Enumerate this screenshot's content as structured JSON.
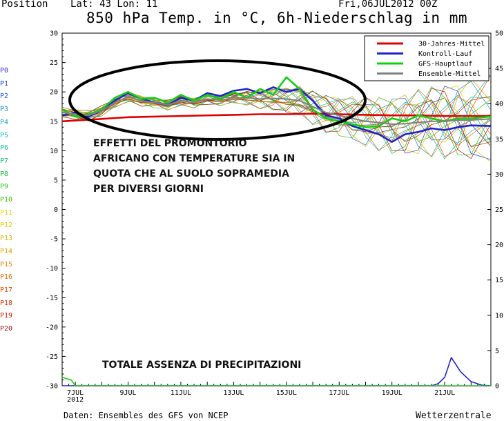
{
  "header": {
    "position_label": "Position",
    "latlon": "Lat: 43 Lon: 11",
    "date": "Fri,06JUL2012  00Z",
    "title": "850 hPa Temp. in °C, 6h-Niederschlag in mm"
  },
  "footer": {
    "source": "Daten: Ensembles des GFS von NCEP",
    "brand": "Wetterzentrale"
  },
  "members": [
    {
      "label": "P0",
      "color": "#3030d0"
    },
    {
      "label": "P1",
      "color": "#1840d8"
    },
    {
      "label": "P2",
      "color": "#2060e0"
    },
    {
      "label": "P3",
      "color": "#1890d0"
    },
    {
      "label": "P4",
      "color": "#10a8c0"
    },
    {
      "label": "P5",
      "color": "#10c0c8"
    },
    {
      "label": "P6",
      "color": "#10b8a0"
    },
    {
      "label": "P7",
      "color": "#10c078"
    },
    {
      "label": "P8",
      "color": "#10c040"
    },
    {
      "label": "P9",
      "color": "#20c020"
    },
    {
      "label": "P10",
      "color": "#40c000"
    },
    {
      "label": "P11",
      "color": "#d8d800"
    },
    {
      "label": "P12",
      "color": "#e0c800"
    },
    {
      "label": "P13",
      "color": "#e0b000"
    },
    {
      "label": "P14",
      "color": "#e0a000"
    },
    {
      "label": "P15",
      "color": "#e08800"
    },
    {
      "label": "P16",
      "color": "#e07000"
    },
    {
      "label": "P17",
      "color": "#e05000"
    },
    {
      "label": "P18",
      "color": "#d83000"
    },
    {
      "label": "P19",
      "color": "#c02000"
    },
    {
      "label": "P20",
      "color": "#a01818"
    }
  ],
  "annotations": {
    "main_lines": [
      "EFFETTI DEL PROMONTORIO",
      "AFRICANO CON TEMPERATURE SIA IN",
      "QUOTA CHE AL SUOLO SOPRAMEDIA",
      "PER DIVERSI GIORNI"
    ],
    "precip_note": "TOTALE ASSENZA DI PRECIPITAZIONI"
  },
  "chart_data": {
    "type": "line",
    "title": "850 hPa Temp. in °C, 6h-Niederschlag in mm",
    "left_axis": {
      "label": "850 hPa Temp. (°C)",
      "min": -30,
      "max": 30,
      "step": 5
    },
    "right_axis": {
      "label": "6h-Niederschlag (mm)",
      "min": 0,
      "max": 50,
      "step": 5
    },
    "x_range_days": [
      6.5,
      22.75
    ],
    "x_ticks": [
      {
        "day": 7,
        "label": "7JUL",
        "sublabel": "2012"
      },
      {
        "day": 9,
        "label": "9JUL"
      },
      {
        "day": 11,
        "label": "11JUL"
      },
      {
        "day": 13,
        "label": "13JUL"
      },
      {
        "day": 15,
        "label": "15JUL"
      },
      {
        "day": 17,
        "label": "17JUL"
      },
      {
        "day": 19,
        "label": "19JUL"
      },
      {
        "day": 21,
        "label": "21JUL"
      }
    ],
    "legend": {
      "position": "top-right",
      "entries": [
        {
          "name": "30-Jahres-Mittel",
          "color": "#e00000"
        },
        {
          "name": "Kontroll-Lauf",
          "color": "#2020d0"
        },
        {
          "name": "GFS-Hauptlauf",
          "color": "#10d010"
        },
        {
          "name": "Ensemble-Mittel",
          "color": "#808080"
        }
      ]
    },
    "series": [
      {
        "name": "30-Jahres-Mittel",
        "axis": "left",
        "color": "#e00000",
        "x": [
          6.5,
          8,
          9,
          10,
          11,
          12,
          13,
          14,
          15,
          16,
          17,
          18,
          19,
          20,
          21,
          22.75
        ],
        "values": [
          15.0,
          15.4,
          15.7,
          15.8,
          15.9,
          16.0,
          16.1,
          16.2,
          16.2,
          16.3,
          16.2,
          16.1,
          16.0,
          16.0,
          15.9,
          15.9
        ]
      },
      {
        "name": "Kontroll-Lauf",
        "axis": "left",
        "color": "#2020d0",
        "x": [
          6.5,
          7,
          7.5,
          8,
          8.5,
          9,
          9.5,
          10,
          10.5,
          11,
          11.5,
          12,
          12.5,
          13,
          13.5,
          14,
          14.5,
          15,
          15.5,
          16,
          16.5,
          17,
          17.5,
          18,
          18.5,
          19,
          19.5,
          20,
          20.5,
          21,
          21.5,
          22,
          22.75
        ],
        "values": [
          16,
          16.5,
          15.8,
          16.8,
          18.5,
          19.8,
          18.8,
          18.2,
          17.8,
          19,
          18.5,
          19.8,
          19.3,
          20.2,
          20.5,
          19.8,
          20.8,
          20,
          20.5,
          18.5,
          16,
          15.5,
          14.2,
          13.5,
          12.8,
          11.5,
          12.8,
          13.2,
          13.8,
          13.5,
          14,
          14.3,
          14.2
        ]
      },
      {
        "name": "GFS-Hauptlauf",
        "axis": "left",
        "color": "#10d010",
        "x": [
          6.5,
          7,
          7.5,
          8,
          8.5,
          9,
          9.5,
          10,
          10.5,
          11,
          11.5,
          12,
          12.5,
          13,
          13.5,
          14,
          14.5,
          15,
          15.5,
          16,
          16.5,
          17,
          17.5,
          18,
          18.5,
          19,
          19.5,
          20,
          20.5,
          21,
          21.5,
          22,
          22.75
        ],
        "values": [
          17,
          15.8,
          16.2,
          17,
          19,
          20,
          18.8,
          19,
          18.2,
          19.5,
          18.5,
          19.5,
          18.8,
          20,
          19,
          20.5,
          19.5,
          22.5,
          20.5,
          17,
          15.5,
          15,
          14.5,
          14,
          14.2,
          15.5,
          15,
          16,
          15.5,
          15,
          15.5,
          15.5,
          15.8
        ]
      },
      {
        "name": "Ensemble-Mittel",
        "axis": "left",
        "color": "#808080",
        "x": [
          6.5,
          7,
          7.5,
          8,
          8.5,
          9,
          9.5,
          10,
          10.5,
          11,
          11.5,
          12,
          12.5,
          13,
          13.5,
          14,
          14.5,
          15,
          15.5,
          16,
          16.5,
          17,
          17.5,
          18,
          18.5,
          19,
          19.5,
          20,
          20.5,
          21,
          21.5,
          22,
          22.75
        ],
        "values": [
          16.5,
          16.2,
          16,
          16.8,
          18.2,
          19.2,
          18.5,
          18.2,
          17.8,
          18.5,
          18.2,
          18.8,
          18.6,
          19,
          19,
          18.8,
          18.9,
          18.8,
          18.5,
          17.5,
          16.5,
          16,
          15.5,
          15,
          14.8,
          14.5,
          14.6,
          14.8,
          15,
          15,
          15.2,
          15.2,
          15.4
        ]
      },
      {
        "name": "Kontroll-Lauf Niederschlag",
        "axis": "right",
        "color": "#2020d0",
        "x": [
          6.5,
          17.5,
          18.0,
          18.25,
          18.5,
          19,
          20,
          20.5,
          20.75,
          21.0,
          21.25,
          21.6,
          22,
          22.4,
          22.75
        ],
        "values": [
          0,
          0,
          0,
          0,
          0,
          0,
          0,
          0,
          0.3,
          1.2,
          4.0,
          2.0,
          0.6,
          0.1,
          0
        ]
      },
      {
        "name": "GFS-Hauptlauf Niederschlag",
        "axis": "right",
        "color": "#10d010",
        "x": [
          6.5,
          6.85,
          7.0,
          7.5,
          15,
          22.75
        ],
        "values": [
          1.2,
          0.8,
          0,
          0,
          0,
          0
        ]
      }
    ]
  }
}
